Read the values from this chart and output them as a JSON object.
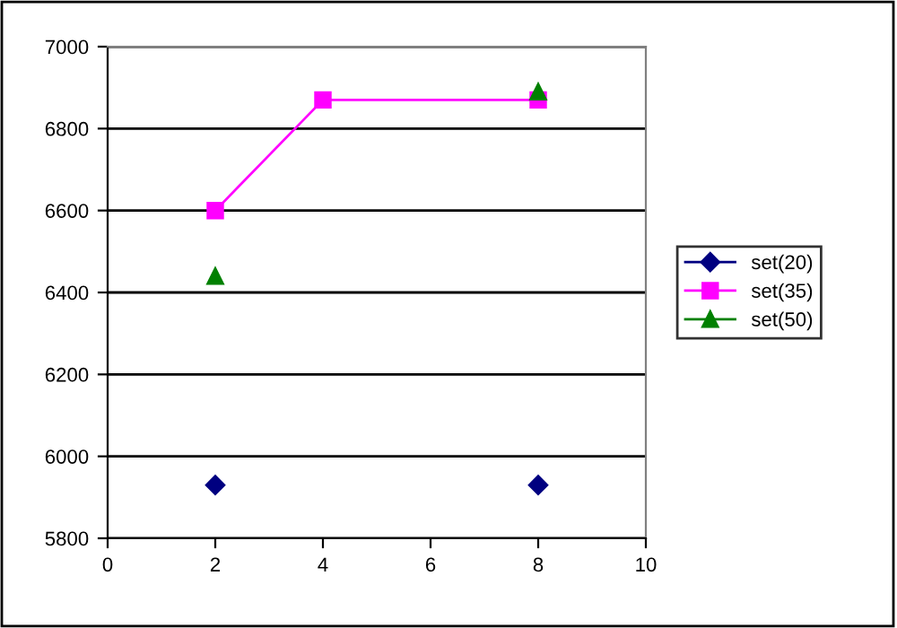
{
  "chart_data": {
    "type": "line",
    "x": [
      2,
      4,
      8
    ],
    "series": [
      {
        "name": "set(20)",
        "type": "scatter",
        "color": "#000080",
        "marker": "diamond",
        "values": [
          5930,
          null,
          5930
        ]
      },
      {
        "name": "set(35)",
        "color": "#ff00ff",
        "marker": "square",
        "values": [
          6600,
          6870,
          6870
        ]
      },
      {
        "name": "set(50)",
        "type": "scatter",
        "color": "#008000",
        "marker": "triangle",
        "values": [
          6440,
          null,
          6890
        ]
      }
    ],
    "xlim": [
      0,
      10
    ],
    "xticks": [
      0,
      2,
      4,
      6,
      8,
      10
    ],
    "ylim": [
      5800,
      7000
    ],
    "yticks": [
      5800,
      6000,
      6200,
      6400,
      6600,
      6800,
      7000
    ],
    "grid": "y",
    "legend": "right",
    "line_style": "solid"
  }
}
